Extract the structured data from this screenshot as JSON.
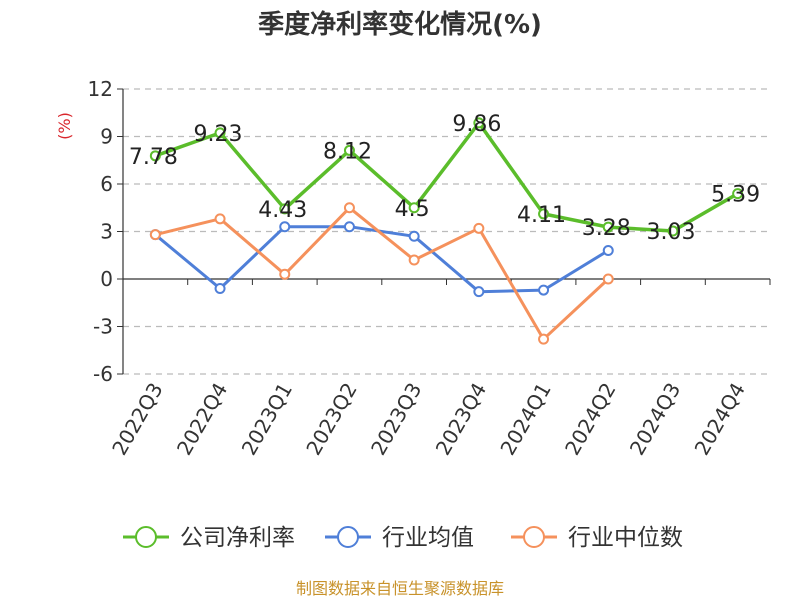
{
  "chart_data": {
    "type": "line",
    "title": "季度净利率变化情况(%)",
    "ylabel": "(%)",
    "ylim": [
      -6,
      12
    ],
    "yticks": [
      12,
      9,
      6,
      3,
      0,
      -3,
      -6
    ],
    "grid": true,
    "legend_position": "bottom",
    "categories": [
      "2022Q3",
      "2022Q4",
      "2023Q1",
      "2023Q2",
      "2023Q3",
      "2023Q4",
      "2024Q1",
      "2024Q2",
      "2024Q3",
      "2024Q4"
    ],
    "series": [
      {
        "name": "公司净利率",
        "color": "#5bbd2b",
        "values": [
          7.78,
          9.23,
          4.43,
          8.12,
          4.5,
          9.86,
          4.11,
          3.28,
          3.03,
          5.39
        ],
        "labels": [
          "7.78",
          "9.23",
          "4.43",
          "8.12",
          "4.5",
          "9.86",
          "4.11",
          "3.28",
          "3.03",
          "5.39"
        ]
      },
      {
        "name": "行业均值",
        "color": "#4f7fd8",
        "values": [
          2.8,
          -0.6,
          3.3,
          3.3,
          2.7,
          -0.8,
          -0.7,
          1.8,
          null,
          null
        ]
      },
      {
        "name": "行业中位数",
        "color": "#f5915c",
        "values": [
          2.8,
          3.8,
          0.3,
          4.5,
          1.2,
          3.2,
          -3.8,
          0.0,
          null,
          null
        ]
      }
    ],
    "source": "制图数据来自恒生聚源数据库"
  }
}
